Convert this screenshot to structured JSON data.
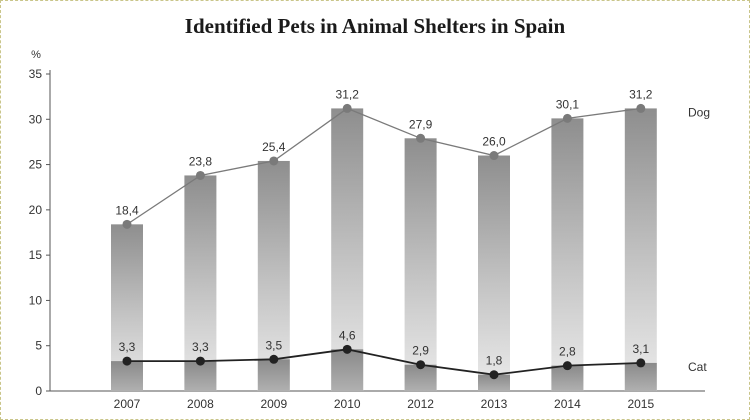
{
  "chart_data": {
    "type": "bar+line",
    "title": "Identified Pets in Animal Shelters in Spain",
    "ylabel": "%",
    "ylim": [
      0,
      35
    ],
    "yticks": [
      "0",
      "5",
      "10",
      "15",
      "20",
      "25",
      "30",
      "35"
    ],
    "categories": [
      "2007",
      "2008",
      "2009",
      "2010",
      "2012",
      "2013",
      "2014",
      "2015"
    ],
    "series": [
      {
        "name": "Dog",
        "values": [
          18.4,
          23.8,
          25.4,
          31.2,
          27.9,
          26.0,
          30.1,
          31.2
        ],
        "labels": [
          "18,4",
          "23,8",
          "25,4",
          "31,2",
          "27,9",
          "26,0",
          "30,1",
          "31,2"
        ],
        "color": "#7a7a7a"
      },
      {
        "name": "Cat",
        "values": [
          3.3,
          3.3,
          3.5,
          4.6,
          2.9,
          1.8,
          2.8,
          3.1
        ],
        "labels": [
          "3,3",
          "3,3",
          "3,5",
          "4,6",
          "2,9",
          "1,8",
          "2,8",
          "3,1"
        ],
        "color": "#222222"
      }
    ],
    "grid": false,
    "legend": "right"
  }
}
